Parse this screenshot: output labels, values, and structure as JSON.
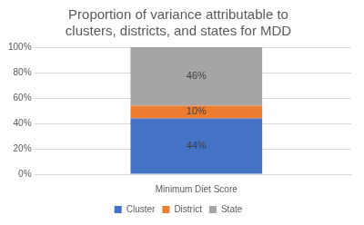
{
  "chart_data": {
    "type": "bar",
    "title": "Proportion of variance attributable to clusters, districts, and states for MDD",
    "categories": [
      "Minimum Diet Score"
    ],
    "series": [
      {
        "name": "Cluster",
        "color": "#4472c4",
        "values": [
          44
        ],
        "value_labels": [
          "44%"
        ]
      },
      {
        "name": "District",
        "color": "#ed7d31",
        "values": [
          10
        ],
        "value_labels": [
          "10%"
        ]
      },
      {
        "name": "State",
        "color": "#a5a5a5",
        "values": [
          46
        ],
        "value_labels": [
          "46%"
        ]
      }
    ],
    "ylim": [
      0,
      100
    ],
    "yticks": [
      {
        "value": 0,
        "label": "0%"
      },
      {
        "value": 20,
        "label": "20%"
      },
      {
        "value": 40,
        "label": "40%"
      },
      {
        "value": 60,
        "label": "60%"
      },
      {
        "value": 80,
        "label": "80%"
      },
      {
        "value": 100,
        "label": "100%"
      }
    ],
    "stacked": true,
    "grid": true,
    "legend": "bottom",
    "data_labels": true
  }
}
